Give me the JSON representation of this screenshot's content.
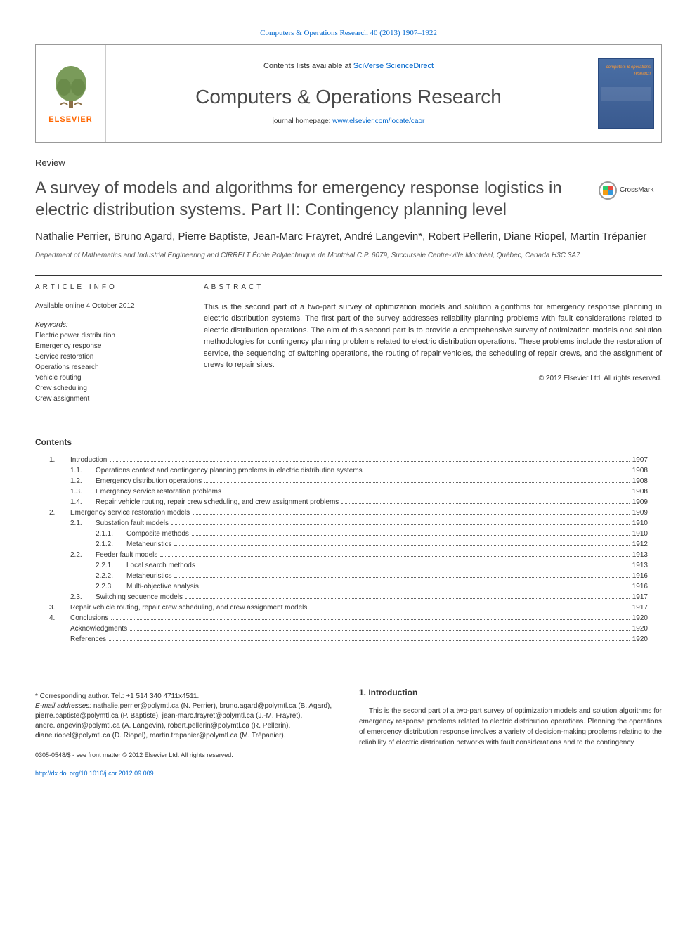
{
  "journal_ref": "Computers & Operations Research 40 (2013) 1907–1922",
  "header": {
    "contents_prefix": "Contents lists available at ",
    "contents_link": "SciVerse ScienceDirect",
    "journal_name": "Computers & Operations Research",
    "homepage_prefix": "journal homepage: ",
    "homepage_url": "www.elsevier.com/locate/caor",
    "elsevier": "ELSEVIER",
    "cover_title": "computers & operations research"
  },
  "article": {
    "type": "Review",
    "title": "A survey of models and algorithms for emergency response logistics in electric distribution systems. Part II: Contingency planning level",
    "crossmark": "CrossMark",
    "authors": "Nathalie Perrier, Bruno Agard, Pierre Baptiste, Jean-Marc Frayret, André Langevin*, Robert Pellerin, Diane Riopel, Martin Trépanier",
    "affiliation": "Department of Mathematics and Industrial Engineering and CIRRELT École Polytechnique de Montréal C.P. 6079, Succursale Centre-ville Montréal, Québec, Canada H3C 3A7"
  },
  "info": {
    "heading": "article info",
    "available": "Available online 4 October 2012",
    "keywords_label": "Keywords:",
    "keywords": [
      "Electric power distribution",
      "Emergency response",
      "Service restoration",
      "Operations research",
      "Vehicle routing",
      "Crew scheduling",
      "Crew assignment"
    ]
  },
  "abstract": {
    "heading": "abstract",
    "text": "This is the second part of a two-part survey of optimization models and solution algorithms for emergency response planning in electric distribution systems. The first part of the survey addresses reliability planning problems with fault considerations related to electric distribution operations. The aim of this second part is to provide a comprehensive survey of optimization models and solution methodologies for contingency planning problems related to electric distribution operations. These problems include the restoration of service, the sequencing of switching operations, the routing of repair vehicles, the scheduling of repair crews, and the assignment of crews to repair sites.",
    "copyright": "© 2012 Elsevier Ltd. All rights reserved."
  },
  "contents": {
    "heading": "Contents",
    "items": [
      {
        "level": 1,
        "num": "1.",
        "title": "Introduction",
        "page": "1907"
      },
      {
        "level": 2,
        "num": "1.1.",
        "title": "Operations context and contingency planning problems in electric distribution systems",
        "page": "1908"
      },
      {
        "level": 2,
        "num": "1.2.",
        "title": "Emergency distribution operations",
        "page": "1908"
      },
      {
        "level": 2,
        "num": "1.3.",
        "title": "Emergency service restoration problems",
        "page": "1908"
      },
      {
        "level": 2,
        "num": "1.4.",
        "title": "Repair vehicle routing, repair crew scheduling, and crew assignment problems",
        "page": "1909"
      },
      {
        "level": 1,
        "num": "2.",
        "title": "Emergency service restoration models",
        "page": "1909"
      },
      {
        "level": 2,
        "num": "2.1.",
        "title": "Substation fault models",
        "page": "1910"
      },
      {
        "level": 3,
        "num": "2.1.1.",
        "title": "Composite methods",
        "page": "1910"
      },
      {
        "level": 3,
        "num": "2.1.2.",
        "title": "Metaheuristics",
        "page": "1912"
      },
      {
        "level": 2,
        "num": "2.2.",
        "title": "Feeder fault models",
        "page": "1913"
      },
      {
        "level": 3,
        "num": "2.2.1.",
        "title": "Local search methods",
        "page": "1913"
      },
      {
        "level": 3,
        "num": "2.2.2.",
        "title": "Metaheuristics",
        "page": "1916"
      },
      {
        "level": 3,
        "num": "2.2.3.",
        "title": "Multi-objective analysis",
        "page": "1916"
      },
      {
        "level": 2,
        "num": "2.3.",
        "title": "Switching sequence models",
        "page": "1917"
      },
      {
        "level": 1,
        "num": "3.",
        "title": "Repair vehicle routing, repair crew scheduling, and crew assignment models",
        "page": "1917"
      },
      {
        "level": 1,
        "num": "4.",
        "title": "Conclusions",
        "page": "1920"
      },
      {
        "level": 1,
        "num": "",
        "title": "Acknowledgments",
        "page": "1920"
      },
      {
        "level": 1,
        "num": "",
        "title": "References",
        "page": "1920"
      }
    ]
  },
  "footnotes": {
    "corresponding": "* Corresponding author. Tel.: +1 514 340 4711x4511.",
    "email_label": "E-mail addresses:",
    "emails": "nathalie.perrier@polymtl.ca (N. Perrier), bruno.agard@polymtl.ca (B. Agard), pierre.baptiste@polymtl.ca (P. Baptiste), jean-marc.frayret@polymtl.ca (J.-M. Frayret), andre.langevin@polymtl.ca (A. Langevin), robert.pellerin@polymtl.ca (R. Pellerin), diane.riopel@polymtl.ca (D. Riopel), martin.trepanier@polymtl.ca (M. Trépanier)."
  },
  "intro": {
    "heading": "1. Introduction",
    "text": "This is the second part of a two-part survey of optimization models and solution algorithms for emergency response problems related to electric distribution operations. Planning the operations of emergency distribution response involves a variety of decision-making problems relating to the reliability of electric distribution networks with fault considerations and to the contingency"
  },
  "footer": {
    "issn": "0305-0548/$ - see front matter © 2012 Elsevier Ltd. All rights reserved.",
    "doi": "http://dx.doi.org/10.1016/j.cor.2012.09.009"
  },
  "colors": {
    "link": "#0066cc",
    "elsevier_orange": "#ff6600",
    "text_gray": "#4a4a4a",
    "cover_blue": "#4a6fa5"
  }
}
